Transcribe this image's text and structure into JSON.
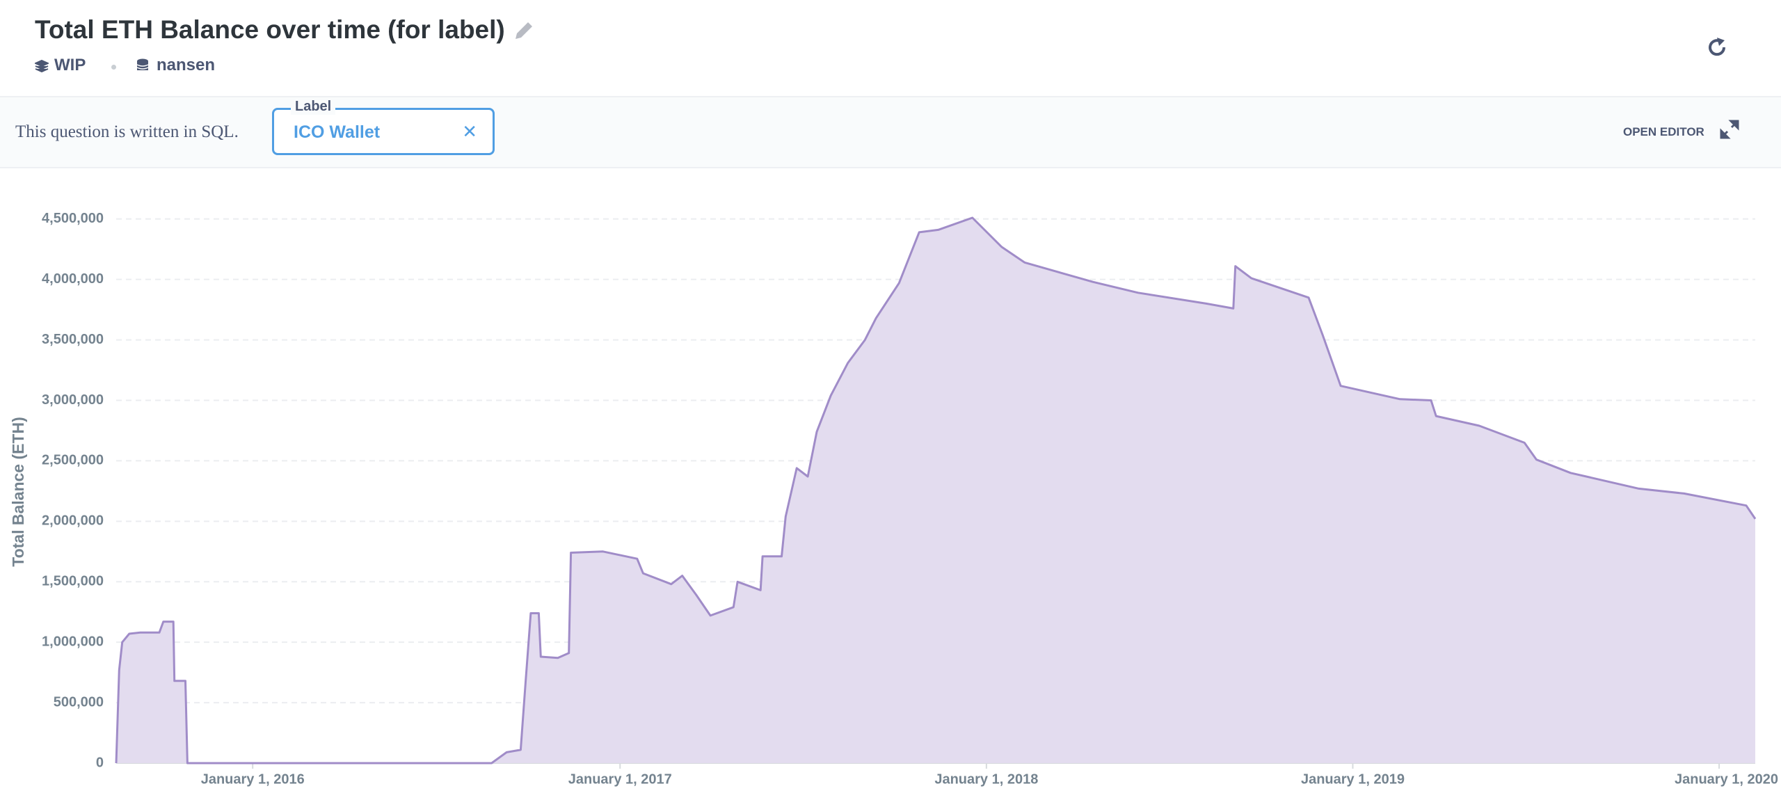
{
  "header": {
    "title": "Total ETH Balance over time (for label)",
    "collection": "WIP",
    "database": "nansen"
  },
  "filter_bar": {
    "note": "This question is written in SQL.",
    "filter_label": "Label",
    "filter_value": "ICO Wallet",
    "editor_button": "OPEN EDITOR"
  },
  "chart_data": {
    "type": "area",
    "y_label": "Total Balance (ETH)",
    "x": [
      "2015-08-18",
      "2015-08-21",
      "2015-08-24",
      "2015-08-31",
      "2015-09-11",
      "2015-09-30",
      "2015-10-04",
      "2015-10-14",
      "2015-10-15",
      "2015-10-26",
      "2015-10-28",
      "2016-08-26",
      "2016-09-10",
      "2016-09-24",
      "2016-09-29",
      "2016-10-04",
      "2016-10-12",
      "2016-10-14",
      "2016-10-31",
      "2016-11-11",
      "2016-11-13",
      "2016-12-15",
      "2017-01-18",
      "2017-01-24",
      "2017-02-21",
      "2017-03-04",
      "2017-03-18",
      "2017-04-01",
      "2017-04-24",
      "2017-04-28",
      "2017-05-21",
      "2017-05-23",
      "2017-06-11",
      "2017-06-15",
      "2017-06-26",
      "2017-07-07",
      "2017-07-16",
      "2017-07-30",
      "2017-08-16",
      "2017-09-02",
      "2017-09-13",
      "2017-10-06",
      "2017-10-26",
      "2017-11-14",
      "2017-12-18",
      "2018-01-16",
      "2018-02-08",
      "2018-04-17",
      "2018-06-01",
      "2018-08-08",
      "2018-09-04",
      "2018-09-06",
      "2018-09-22",
      "2018-11-18",
      "2018-12-02",
      "2018-12-20",
      "2019-02-17",
      "2019-03-20",
      "2019-03-25",
      "2019-05-07",
      "2019-06-21",
      "2019-07-03",
      "2019-08-06",
      "2019-10-13",
      "2019-11-27",
      "2020-01-28",
      "2020-02-06"
    ],
    "series": [
      {
        "name": "Total Balance (ETH)",
        "color": "#a08cc8",
        "fill": "#e3dcef",
        "values": [
          0,
          770000,
          1000000,
          1070000,
          1080000,
          1080000,
          1170000,
          1170000,
          680000,
          680000,
          0,
          0,
          90000,
          110000,
          680000,
          1240000,
          1240000,
          880000,
          870000,
          910000,
          1740000,
          1750000,
          1690000,
          1570000,
          1480000,
          1550000,
          1390000,
          1220000,
          1290000,
          1500000,
          1430000,
          1710000,
          1710000,
          2040000,
          2440000,
          2370000,
          2740000,
          3040000,
          3310000,
          3500000,
          3680000,
          3970000,
          4390000,
          4410000,
          4510000,
          4270000,
          4140000,
          3980000,
          3890000,
          3800000,
          3760000,
          4110000,
          4010000,
          3850000,
          3540000,
          3120000,
          3010000,
          3000000,
          2870000,
          2790000,
          2650000,
          2510000,
          2400000,
          2270000,
          2230000,
          2130000,
          2020000
        ]
      }
    ],
    "xlim": [
      "2015-08-18",
      "2020-02-06"
    ],
    "xticks": [
      {
        "value": "2016-01-01",
        "label": "January 1, 2016"
      },
      {
        "value": "2017-01-01",
        "label": "January 1, 2017"
      },
      {
        "value": "2018-01-01",
        "label": "January 1, 2018"
      },
      {
        "value": "2019-01-01",
        "label": "January 1, 2019"
      },
      {
        "value": "2020-01-01",
        "label": "January 1, 2020"
      }
    ],
    "ylim": [
      0,
      4700000
    ],
    "yticks": [
      0,
      {
        "value": 500000,
        "label": "500,000"
      },
      {
        "value": 1000000,
        "label": "1,000,000"
      },
      {
        "value": 1500000,
        "label": "1,500,000"
      },
      {
        "value": 2000000,
        "label": "2,000,000"
      },
      {
        "value": 2500000,
        "label": "2,500,000"
      },
      {
        "value": 3000000,
        "label": "3,000,000"
      },
      {
        "value": 3500000,
        "label": "3,500,000"
      },
      {
        "value": 4000000,
        "label": "4,000,000"
      },
      {
        "value": 4500000,
        "label": "4,500,000"
      }
    ],
    "grid": true
  }
}
